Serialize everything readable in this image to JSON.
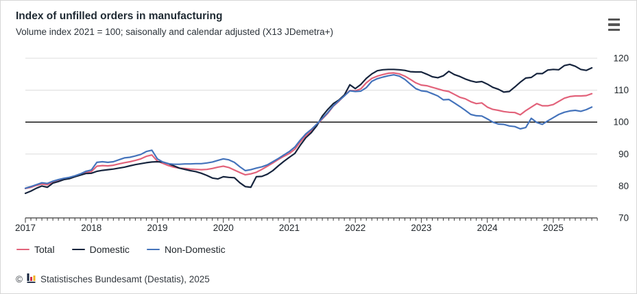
{
  "chart_data": {
    "type": "line",
    "title": "Index of unfilled orders in manufacturing",
    "subtitle": "Volume index 2021 = 100; saisonally and calendar adjusted (X13 JDemetra+)",
    "xlabel": "",
    "ylabel": "",
    "x_unit": "month",
    "x_start": "2017-01",
    "x_end": "2025-08",
    "x_tick_labels": [
      "2017",
      "2018",
      "2019",
      "2020",
      "2021",
      "2022",
      "2023",
      "2024",
      "2025"
    ],
    "y_ticks": [
      70,
      80,
      90,
      100,
      110,
      120
    ],
    "ylim": [
      70,
      122
    ],
    "reference_line": 100,
    "grid": "horizontal-only",
    "y_axis_side": "right",
    "legend_position": "bottom-left",
    "colors": {
      "grid": "#dcdcdc",
      "reference_line": "#000000",
      "axis": "#3a3a3a",
      "tick_text": "#20262b"
    },
    "series": [
      {
        "name": "Total",
        "color": "#e2627a",
        "values": [
          79.2,
          79.6,
          80.2,
          80.6,
          80.4,
          81.2,
          81.7,
          82.2,
          82.5,
          83.0,
          83.6,
          84.2,
          84.5,
          86.2,
          86.4,
          86.3,
          86.5,
          86.9,
          87.3,
          87.6,
          88.0,
          88.5,
          89.3,
          89.7,
          87.8,
          87.1,
          86.4,
          85.9,
          85.6,
          85.5,
          85.3,
          85.2,
          85.1,
          85.2,
          85.5,
          85.9,
          86.2,
          85.8,
          85.0,
          84.2,
          83.5,
          83.8,
          84.3,
          85.2,
          86.2,
          87.2,
          88.3,
          89.3,
          90.2,
          91.5,
          93.8,
          95.8,
          97.2,
          99.2,
          101.0,
          102.8,
          105.0,
          106.5,
          108.3,
          109.9,
          109.8,
          110.4,
          112.3,
          113.7,
          114.4,
          114.9,
          115.3,
          115.4,
          115.1,
          114.4,
          113.4,
          112.3,
          111.6,
          111.4,
          110.9,
          110.4,
          109.9,
          109.6,
          108.7,
          107.8,
          107.3,
          106.4,
          105.8,
          106.0,
          104.7,
          104.0,
          103.7,
          103.3,
          103.1,
          103.0,
          102.3,
          103.6,
          104.7,
          105.8,
          105.1,
          105.1,
          105.5,
          106.5,
          107.5,
          108.0,
          108.2,
          108.2,
          108.3,
          108.9
        ]
      },
      {
        "name": "Domestic",
        "color": "#16243d",
        "values": [
          77.7,
          78.4,
          79.3,
          80.0,
          79.6,
          80.9,
          81.4,
          82.0,
          82.3,
          82.9,
          83.4,
          83.9,
          84.0,
          84.6,
          84.9,
          85.1,
          85.3,
          85.6,
          85.9,
          86.3,
          86.7,
          87.0,
          87.3,
          87.5,
          87.6,
          87.5,
          87.0,
          86.3,
          85.6,
          85.2,
          84.8,
          84.5,
          84.0,
          83.3,
          82.5,
          82.2,
          82.9,
          82.7,
          82.6,
          81.0,
          79.8,
          79.6,
          82.9,
          83.0,
          83.7,
          84.8,
          86.3,
          87.7,
          89.0,
          90.2,
          92.8,
          95.1,
          96.7,
          98.9,
          101.9,
          104.0,
          105.8,
          106.9,
          108.5,
          111.7,
          110.5,
          111.8,
          113.7,
          115.1,
          116.1,
          116.4,
          116.5,
          116.5,
          116.4,
          116.2,
          115.8,
          115.7,
          115.7,
          115.0,
          114.2,
          113.9,
          114.5,
          115.9,
          114.9,
          114.3,
          113.5,
          112.9,
          112.5,
          112.7,
          111.9,
          110.9,
          110.3,
          109.4,
          109.6,
          111.0,
          112.5,
          113.8,
          114.0,
          115.2,
          115.2,
          116.3,
          116.5,
          116.4,
          117.7,
          118.1,
          117.5,
          116.5,
          116.2,
          117.0
        ]
      },
      {
        "name": "Non-Domestic",
        "color": "#4473bb",
        "values": [
          79.3,
          79.8,
          80.4,
          81.0,
          80.8,
          81.5,
          82.0,
          82.4,
          82.7,
          83.2,
          83.8,
          84.6,
          85.0,
          87.4,
          87.6,
          87.4,
          87.6,
          88.2,
          88.8,
          89.0,
          89.4,
          89.9,
          90.8,
          91.2,
          88.5,
          87.5,
          87.0,
          86.8,
          86.8,
          86.9,
          86.9,
          87.0,
          87.0,
          87.2,
          87.5,
          88.0,
          88.5,
          88.2,
          87.4,
          86.0,
          84.8,
          85.1,
          85.6,
          86.0,
          86.6,
          87.6,
          88.6,
          89.7,
          90.8,
          92.2,
          94.4,
          96.3,
          97.7,
          99.4,
          101.2,
          103.0,
          105.1,
          106.7,
          108.2,
          109.8,
          109.6,
          109.7,
          110.8,
          112.8,
          113.6,
          114.1,
          114.5,
          114.8,
          114.4,
          113.4,
          111.9,
          110.5,
          109.8,
          109.6,
          108.9,
          108.2,
          107.0,
          107.1,
          106.0,
          104.9,
          103.7,
          102.4,
          102.0,
          101.9,
          101.0,
          100.0,
          99.4,
          99.3,
          98.8,
          98.6,
          97.9,
          98.3,
          101.2,
          99.9,
          99.3,
          100.4,
          101.4,
          102.4,
          103.1,
          103.5,
          103.7,
          103.4,
          103.9,
          104.7
        ]
      }
    ]
  },
  "icons": {
    "menu": "hamburger-icon",
    "logo": "destatis-bar-chart-logo"
  },
  "footer": {
    "copyright_symbol": "©",
    "source": "Statistisches Bundesamt (Destatis), 2025"
  }
}
